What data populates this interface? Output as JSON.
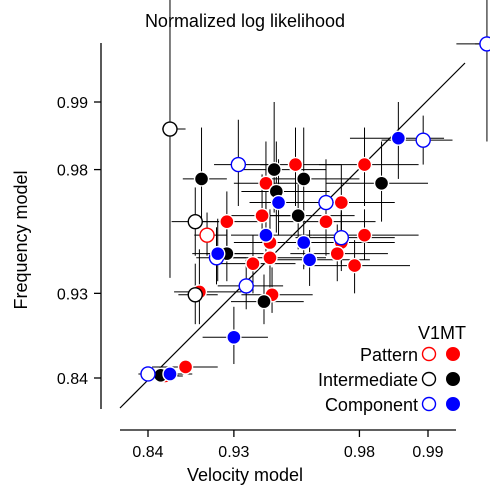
{
  "chart_data": {
    "type": "scatter",
    "title": "Normalized log likelihood",
    "xlabel": "Velocity model",
    "ylabel": "Frequency model",
    "axis_scale": "fisher-z transformed (ticks labelled in normalized likelihood)",
    "xlim": [
      "<0.84",
      ">0.99"
    ],
    "ylim": [
      "<0.84",
      ">0.99"
    ],
    "xticks": [
      "0.84",
      "0.93",
      "0.98",
      "0.99"
    ],
    "yticks": [
      "0.84",
      "0.93",
      "0.98",
      "0.99"
    ],
    "grid": false,
    "diagonal_unity_line": true,
    "legend": {
      "position": "bottom-right",
      "column_headers": [
        "V1",
        "MT"
      ],
      "row_labels": [
        "Pattern",
        "Intermediate",
        "Component"
      ],
      "marker_note": "open circle = V1, filled circle = MT"
    },
    "colors": {
      "pattern": "#ff0000",
      "intermediate": "#000000",
      "component": "#0000ff"
    },
    "series": [
      {
        "name": "Pattern V1",
        "class": "Pattern",
        "area": "V1",
        "fill": "open",
        "points": [
          {
            "x": 0.909,
            "y": 0.961,
            "x_err": [
              0.897,
              0.925
            ],
            "y_err": [
              0.952,
              0.969
            ]
          }
        ]
      },
      {
        "name": "Pattern MT",
        "class": "Pattern",
        "area": "MT",
        "fill": "filled",
        "points": [
          {
            "x": 0.864,
            "y": 0.843,
            "x_err": [
              0.84,
              0.885
            ],
            "y_err": [
              0.836,
              0.851
            ]
          },
          {
            "x": 0.888,
            "y": 0.856,
            "x_err": [
              0.846,
              0.918
            ],
            "y_err": [
              0.848,
              0.864
            ]
          },
          {
            "x": 0.902,
            "y": 0.931,
            "x_err": [
              0.875,
              0.935
            ],
            "y_err": [
              0.905,
              0.955
            ]
          },
          {
            "x": 0.925,
            "y": 0.966,
            "x_err": [
              0.905,
              0.945
            ],
            "y_err": [
              0.955,
              0.975
            ]
          },
          {
            "x": 0.949,
            "y": 0.977,
            "x_err": [
              0.93,
              0.965
            ],
            "y_err": [
              0.966,
              0.985
            ]
          },
          {
            "x": 0.951,
            "y": 0.951,
            "x_err": [
              0.922,
              0.972
            ],
            "y_err": [
              0.934,
              0.964
            ]
          },
          {
            "x": 0.942,
            "y": 0.948,
            "x_err": [
              0.918,
              0.962
            ],
            "y_err": [
              0.93,
              0.961
            ]
          },
          {
            "x": 0.951,
            "y": 0.958,
            "x_err": [
              0.93,
              0.969
            ],
            "y_err": [
              0.945,
              0.97
            ]
          },
          {
            "x": 0.947,
            "y": 0.968,
            "x_err": [
              0.928,
              0.964
            ],
            "y_err": [
              0.958,
              0.979
            ]
          },
          {
            "x": 0.952,
            "y": 0.929,
            "x_err": [
              0.935,
              0.968
            ],
            "y_err": [
              0.915,
              0.946
            ]
          },
          {
            "x": 0.962,
            "y": 0.981,
            "x_err": [
              0.946,
              0.976
            ],
            "y_err": [
              0.971,
              0.987
            ]
          },
          {
            "x": 0.972,
            "y": 0.966,
            "x_err": [
              0.955,
              0.983
            ],
            "y_err": [
              0.952,
              0.976
            ]
          },
          {
            "x": 0.976,
            "y": 0.958,
            "x_err": [
              0.963,
              0.986
            ],
            "y_err": [
              0.944,
              0.969
            ]
          },
          {
            "x": 0.975,
            "y": 0.953,
            "x_err": [
              0.96,
              0.985
            ],
            "y_err": [
              0.938,
              0.965
            ]
          },
          {
            "x": 0.979,
            "y": 0.947,
            "x_err": [
              0.965,
              0.988
            ],
            "y_err": [
              0.93,
              0.959
            ]
          },
          {
            "x": 0.981,
            "y": 0.961,
            "x_err": [
              0.968,
              0.989
            ],
            "y_err": [
              0.95,
              0.97
            ]
          },
          {
            "x": 0.981,
            "y": 0.981,
            "x_err": [
              0.97,
              0.989
            ],
            "y_err": [
              0.971,
              0.987
            ]
          },
          {
            "x": 0.976,
            "y": 0.972,
            "x_err": [
              0.962,
              0.986
            ],
            "y_err": [
              0.96,
              0.981
            ]
          }
        ]
      },
      {
        "name": "Intermediate V1",
        "class": "Intermediate",
        "area": "V1",
        "fill": "open",
        "points": [
          {
            "x": 0.87,
            "y": 0.9868,
            "x_err": [
              0.86,
              0.888
            ],
            "y_err": [
              0.94,
              0.9965
            ]
          },
          {
            "x": 0.898,
            "y": 0.966,
            "x_err": [
              0.872,
              0.92
            ],
            "y_err": [
              0.952,
              0.976
            ]
          },
          {
            "x": 0.898,
            "y": 0.929,
            "x_err": [
              0.88,
              0.918
            ],
            "y_err": [
              0.905,
              0.948
            ]
          }
        ]
      },
      {
        "name": "Intermediate MT",
        "class": "Intermediate",
        "area": "MT",
        "fill": "filled",
        "points": [
          {
            "x": 0.858,
            "y": 0.844,
            "x_err": [
              0.835,
              0.88
            ],
            "y_err": [
              0.836,
              0.853
            ]
          },
          {
            "x": 0.904,
            "y": 0.978,
            "x_err": [
              0.885,
              0.925
            ],
            "y_err": [
              0.966,
              0.987
            ]
          },
          {
            "x": 0.925,
            "y": 0.953,
            "x_err": [
              0.908,
              0.95
            ],
            "y_err": [
              0.938,
              0.968
            ]
          },
          {
            "x": 0.953,
            "y": 0.98,
            "x_err": [
              0.935,
              0.972
            ],
            "y_err": [
              0.969,
              0.99
            ]
          },
          {
            "x": 0.954,
            "y": 0.975,
            "x_err": [
              0.935,
              0.973
            ],
            "y_err": [
              0.962,
              0.985
            ]
          },
          {
            "x": 0.965,
            "y": 0.978,
            "x_err": [
              0.948,
              0.98
            ],
            "y_err": [
              0.966,
              0.987
            ]
          },
          {
            "x": 0.963,
            "y": 0.968,
            "x_err": [
              0.945,
              0.979
            ],
            "y_err": [
              0.955,
              0.979
            ]
          },
          {
            "x": 0.948,
            "y": 0.924,
            "x_err": [
              0.928,
              0.965
            ],
            "y_err": [
              0.905,
              0.942
            ]
          },
          {
            "x": 0.984,
            "y": 0.977,
            "x_err": [
              0.972,
              0.99
            ],
            "y_err": [
              0.966,
              0.985
            ]
          }
        ]
      },
      {
        "name": "Component V1",
        "class": "Component",
        "area": "V1",
        "fill": "open",
        "points": [
          {
            "x": 0.84,
            "y": 0.846,
            "x_err": [
              0.825,
              0.862
            ],
            "y_err": [
              0.838,
              0.855
            ]
          },
          {
            "x": 0.917,
            "y": 0.951,
            "x_err": [
              0.899,
              0.938
            ],
            "y_err": [
              0.936,
              0.964
            ]
          },
          {
            "x": 0.938,
            "y": 0.935,
            "x_err": [
              0.918,
              0.957
            ],
            "y_err": [
              0.918,
              0.95
            ]
          },
          {
            "x": 0.933,
            "y": 0.981,
            "x_err": [
              0.915,
              0.953
            ],
            "y_err": [
              0.971,
              0.988
            ]
          },
          {
            "x": 0.972,
            "y": 0.972,
            "x_err": [
              0.958,
              0.984
            ],
            "y_err": [
              0.96,
              0.982
            ]
          },
          {
            "x": 0.976,
            "y": 0.96,
            "x_err": [
              0.962,
              0.986
            ],
            "y_err": [
              0.948,
              0.97
            ]
          },
          {
            "x": 0.9895,
            "y": 0.9852,
            "x_err": [
              0.984,
              0.9922
            ],
            "y_err": [
              0.981,
              0.9885
            ]
          },
          {
            "x": 0.9945,
            "y": 0.9945,
            "x_err": [
              0.9925,
              0.9965
            ],
            "y_err": [
              0.985,
              0.9982
            ]
          },
          {
            "x": 0.9962,
            "y": 0.9945,
            "x_err": [
              0.9938,
              0.9978
            ],
            "y_err": [
              0.985,
              0.9982
            ]
          }
        ]
      },
      {
        "name": "Component MT",
        "class": "Component",
        "area": "MT",
        "fill": "filled",
        "points": [
          {
            "x": 0.87,
            "y": 0.846,
            "x_err": [
              0.845,
              0.895
            ],
            "y_err": [
              0.837,
              0.856
            ]
          },
          {
            "x": 0.918,
            "y": 0.953,
            "x_err": [
              0.895,
              0.94
            ],
            "y_err": [
              0.938,
              0.967
            ]
          },
          {
            "x": 0.93,
            "y": 0.892,
            "x_err": [
              0.905,
              0.95
            ],
            "y_err": [
              0.86,
              0.92
            ]
          },
          {
            "x": 0.949,
            "y": 0.961,
            "x_err": [
              0.928,
              0.968
            ],
            "y_err": [
              0.948,
              0.972
            ]
          },
          {
            "x": 0.955,
            "y": 0.972,
            "x_err": [
              0.94,
              0.972
            ],
            "y_err": [
              0.961,
              0.982
            ]
          },
          {
            "x": 0.965,
            "y": 0.958,
            "x_err": [
              0.948,
              0.98
            ],
            "y_err": [
              0.945,
              0.969
            ]
          },
          {
            "x": 0.967,
            "y": 0.95,
            "x_err": [
              0.95,
              0.982
            ],
            "y_err": [
              0.935,
              0.963
            ]
          },
          {
            "x": 0.9865,
            "y": 0.9855,
            "x_err": [
              0.978,
              0.9915
            ],
            "y_err": [
              0.978,
              0.99
            ]
          }
        ]
      }
    ]
  }
}
